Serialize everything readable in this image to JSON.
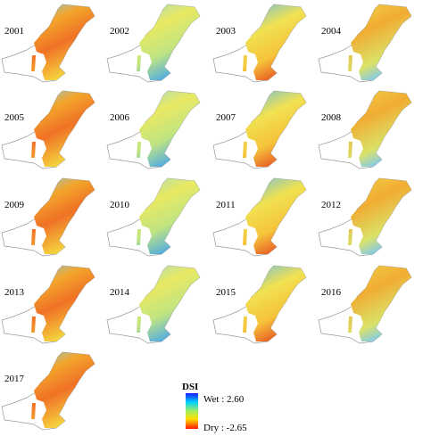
{
  "maps": {
    "years": [
      "2001",
      "2002",
      "2003",
      "2004",
      "2005",
      "2006",
      "2007",
      "2008",
      "2009",
      "2010",
      "2011",
      "2012",
      "2013",
      "2014",
      "2015",
      "2016",
      "2017"
    ]
  },
  "legend": {
    "title": "DSI",
    "wet_label": "Wet : 2.60",
    "dry_label": "Dry : -2.65"
  }
}
